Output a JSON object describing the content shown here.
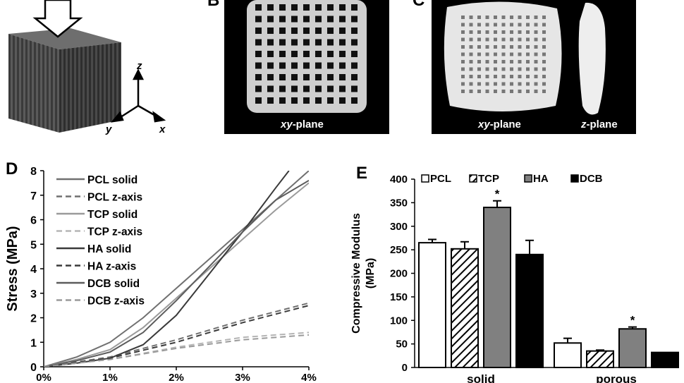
{
  "panel_a": {
    "axes": {
      "z": "z",
      "y": "y",
      "x": "x"
    }
  },
  "panel_b": {
    "letter": "B",
    "label_italic": "xy",
    "label_rest": "-plane"
  },
  "panel_c": {
    "letter": "C",
    "label1_italic": "xy",
    "label1_rest": "-plane",
    "label2_italic": "z",
    "label2_rest": "-plane"
  },
  "chart_data": [
    {
      "panel": "D",
      "type": "line",
      "ylabel": "Stress (MPa)",
      "xlabel": "",
      "x_ticks": [
        "0%",
        "1%",
        "2%",
        "3%",
        "4%"
      ],
      "y_ticks": [
        "0",
        "1",
        "2",
        "3",
        "4",
        "5",
        "6",
        "7",
        "8"
      ],
      "xlim": [
        0,
        4
      ],
      "ylim": [
        0,
        8
      ],
      "series": [
        {
          "name": "PCL solid",
          "style": "solid",
          "color": "#707070",
          "x": [
            0,
            0.5,
            1.0,
            1.5,
            2.0,
            2.5,
            3.0,
            3.5,
            4.0
          ],
          "y": [
            0,
            0.4,
            1.0,
            2.0,
            3.2,
            4.4,
            5.6,
            6.8,
            8.0
          ]
        },
        {
          "name": "PCL z-axis",
          "style": "dashed",
          "color": "#707070",
          "x": [
            0,
            1.0,
            2.0,
            3.0,
            4.0
          ],
          "y": [
            0,
            0.4,
            1.1,
            1.9,
            2.6
          ]
        },
        {
          "name": "TCP solid",
          "style": "solid",
          "color": "#9a9a9a",
          "x": [
            0,
            0.5,
            1.0,
            1.5,
            2.0,
            2.5,
            3.0,
            3.5,
            4.0
          ],
          "y": [
            0,
            0.3,
            0.7,
            1.6,
            2.8,
            4.0,
            5.2,
            6.4,
            7.5
          ]
        },
        {
          "name": "TCP z-axis",
          "style": "dashed",
          "color": "#b5b5b5",
          "x": [
            0,
            1.0,
            2.0,
            3.0,
            4.0
          ],
          "y": [
            0,
            0.3,
            0.8,
            1.2,
            1.4
          ]
        },
        {
          "name": "HA solid",
          "style": "solid",
          "color": "#3a3a3a",
          "x": [
            0,
            0.5,
            1.0,
            1.5,
            2.0,
            2.5,
            3.0,
            3.5,
            3.7
          ],
          "y": [
            0,
            0.15,
            0.35,
            0.9,
            2.1,
            3.8,
            5.5,
            7.3,
            8.0
          ]
        },
        {
          "name": "HA z-axis",
          "style": "dashed",
          "color": "#3a3a3a",
          "x": [
            0,
            1.0,
            2.0,
            3.0,
            4.0
          ],
          "y": [
            0,
            0.35,
            1.0,
            1.8,
            2.5
          ]
        },
        {
          "name": "DCB solid",
          "style": "solid",
          "color": "#5c5c5c",
          "x": [
            0,
            0.5,
            1.0,
            1.5,
            2.0,
            2.5,
            3.0,
            3.5,
            4.0
          ],
          "y": [
            0,
            0.25,
            0.6,
            1.4,
            2.7,
            4.1,
            5.5,
            6.8,
            7.6
          ]
        },
        {
          "name": "DCB z-axis",
          "style": "dashed",
          "color": "#9a9a9a",
          "x": [
            0,
            1.0,
            2.0,
            3.0,
            4.0
          ],
          "y": [
            0,
            0.3,
            0.75,
            1.1,
            1.3
          ]
        }
      ]
    },
    {
      "panel": "E",
      "type": "bar",
      "ylabel": "Compressive Modulus (MPa)",
      "ylabel_line1": "Compressive Modulus",
      "ylabel_line2": "(MPa)",
      "categories": [
        "solid",
        "porous"
      ],
      "y_ticks": [
        "0",
        "50",
        "100",
        "150",
        "200",
        "250",
        "300",
        "350",
        "400"
      ],
      "ylim": [
        0,
        400
      ],
      "series": [
        {
          "name": "PCL",
          "fill": "white",
          "values": [
            265,
            52
          ],
          "errors": [
            7,
            10
          ],
          "sig": [
            "",
            ""
          ]
        },
        {
          "name": "TCP",
          "fill": "hatch",
          "values": [
            252,
            35
          ],
          "errors": [
            15,
            2
          ],
          "sig": [
            "",
            ""
          ]
        },
        {
          "name": "HA",
          "fill": "#808080",
          "values": [
            340,
            82
          ],
          "errors": [
            14,
            4
          ],
          "sig": [
            "*",
            "*"
          ]
        },
        {
          "name": "DCB",
          "fill": "#000000",
          "values": [
            240,
            32
          ],
          "errors": [
            30,
            0
          ],
          "sig": [
            "",
            ""
          ]
        }
      ]
    }
  ]
}
